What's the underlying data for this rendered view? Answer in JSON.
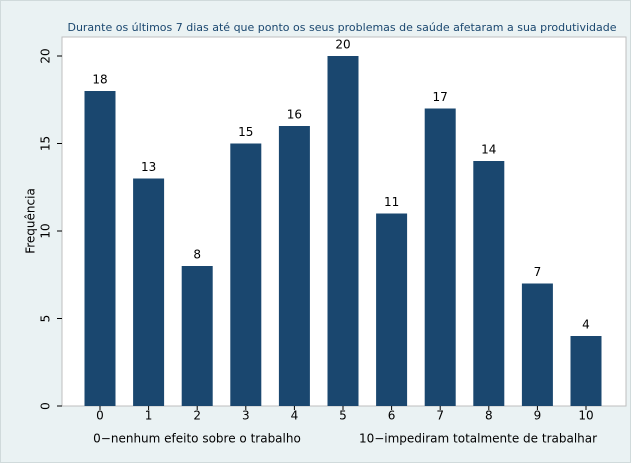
{
  "chart_data": {
    "type": "bar",
    "title": "Durante os últimos 7 dias até que ponto os seus problemas de saúde afetaram a sua produtividade",
    "y_label": "Frequência",
    "categories": [
      "0",
      "1",
      "2",
      "3",
      "4",
      "5",
      "6",
      "7",
      "8",
      "9",
      "10"
    ],
    "values": [
      18,
      13,
      8,
      15,
      16,
      20,
      11,
      17,
      14,
      7,
      4
    ],
    "color": "#1a476f",
    "ylim": [
      0,
      21
    ],
    "yticks": [
      0,
      5,
      10,
      15,
      20
    ],
    "grid": false,
    "x_notes": [
      "0−nenhum efeito sobre o trabalho",
      "10−impediram totalmente de trabalhar"
    ]
  }
}
